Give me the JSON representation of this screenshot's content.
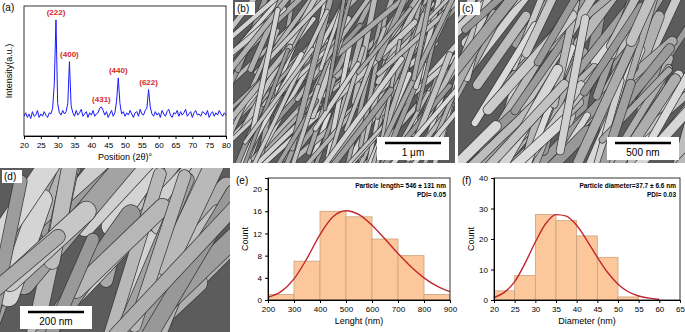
{
  "chart_data": [
    {
      "type": "line",
      "panel_label": "(a)",
      "x_label": "Position (2θ)°",
      "y_label": "Intensity(a.u.)",
      "x": [
        20,
        20.5,
        21,
        21.5,
        22,
        22.5,
        23,
        23.5,
        24,
        24.5,
        25,
        25.5,
        26,
        26.5,
        27,
        27.5,
        28,
        28.5,
        29,
        29.5,
        30,
        30.5,
        31,
        31.5,
        32,
        32.5,
        33,
        33.5,
        34,
        34.5,
        35,
        35.5,
        36,
        36.5,
        37,
        37.5,
        38,
        38.5,
        39,
        39.5,
        40,
        40.5,
        41,
        41.5,
        42,
        42.5,
        43,
        43.5,
        44,
        44.5,
        45,
        45.5,
        46,
        46.5,
        47,
        47.5,
        48,
        48.5,
        49,
        49.5,
        50,
        50.5,
        51,
        51.5,
        52,
        52.5,
        53,
        53.5,
        54,
        54.5,
        55,
        55.5,
        56,
        56.5,
        57,
        57.5,
        58,
        58.5,
        59,
        59.5,
        60,
        60.5,
        61,
        61.5,
        62,
        62.5,
        63,
        63.5,
        64,
        64.5,
        65,
        65.5,
        66,
        66.5,
        67,
        67.5,
        68,
        68.5,
        69,
        69.5,
        70,
        70.5,
        71,
        71.5,
        72,
        72.5,
        73,
        73.5,
        74,
        74.5,
        75,
        75.5,
        76,
        76.5,
        77,
        77.5,
        78,
        78.5,
        79,
        79.5,
        80
      ],
      "values": [
        17,
        20,
        16,
        19,
        15,
        21,
        17,
        18,
        22,
        16,
        19,
        17,
        21,
        18,
        16,
        20,
        19,
        24,
        45,
        100,
        28,
        20,
        18,
        22,
        19,
        21,
        28,
        64,
        26,
        20,
        17,
        22,
        18,
        20,
        23,
        17,
        19,
        21,
        16,
        20,
        18,
        22,
        17,
        19,
        20,
        24,
        25,
        22,
        18,
        21,
        16,
        19,
        22,
        17,
        20,
        30,
        50,
        28,
        19,
        21,
        17,
        20,
        18,
        22,
        19,
        16,
        20,
        21,
        17,
        23,
        19,
        18,
        22,
        24,
        40,
        25,
        19,
        17,
        21,
        18,
        20,
        16,
        22,
        19,
        17,
        21,
        23,
        18,
        16,
        20,
        19,
        22,
        17,
        21,
        18,
        20,
        23,
        17,
        19,
        21,
        16,
        20,
        22,
        18,
        19,
        17,
        21,
        20,
        18,
        22,
        16,
        19,
        21,
        17,
        20,
        18,
        22,
        19,
        17,
        20,
        18
      ],
      "color": "#1a1aff",
      "xlim": [
        20,
        80
      ],
      "xticks": [
        20,
        25,
        30,
        35,
        40,
        45,
        50,
        55,
        60,
        65,
        70,
        75,
        80
      ],
      "ylim": [
        0,
        112
      ],
      "tick_labels": "x",
      "annotations": [
        {
          "text": "(222)",
          "x": 29.5,
          "y": 104
        },
        {
          "text": "(400)",
          "x": 33.5,
          "y": 68
        },
        {
          "text": "(431)",
          "x": 43,
          "y": 29
        },
        {
          "text": "(440)",
          "x": 48,
          "y": 54
        },
        {
          "text": "(622)",
          "x": 57,
          "y": 44
        }
      ]
    },
    {
      "type": "histogram",
      "panel_label": "(e)",
      "x_label": "Lenght (nm)",
      "y_label": "Count",
      "bins": [
        200,
        300,
        400,
        500,
        600,
        700,
        800,
        900
      ],
      "counts": [
        1,
        7,
        16,
        15,
        11,
        8,
        1
      ],
      "color": "#fcc89b",
      "xlim": [
        200,
        900
      ],
      "xticks": [
        200,
        300,
        400,
        500,
        600,
        700,
        800,
        900
      ],
      "ylim": [
        0,
        22
      ],
      "yticks": [
        0,
        4,
        8,
        12,
        16,
        20
      ],
      "fit_curve": {
        "color": "#c1272d",
        "x": [
          200,
          250,
          300,
          350,
          400,
          450,
          500,
          550,
          600,
          650,
          700,
          750,
          800,
          850,
          900
        ],
        "values": [
          0.5,
          1.5,
          3.8,
          7.5,
          11.8,
          15.0,
          16.1,
          15.4,
          13.5,
          11.0,
          8.4,
          6.0,
          4.0,
          2.5,
          1.5
        ]
      },
      "annotations": [
        {
          "text": "Particle length= 546 ± 131 nm"
        },
        {
          "text": "PDI= 0.05"
        }
      ]
    },
    {
      "type": "histogram",
      "panel_label": "(f)",
      "x_label": "Diameter (nm)",
      "y_label": "Count",
      "bins": [
        20,
        25,
        30,
        35,
        40,
        45,
        50,
        55
      ],
      "counts": [
        3,
        8,
        28,
        26,
        21,
        14,
        1
      ],
      "color": "#fcc89b",
      "xlim": [
        20,
        65
      ],
      "xticks": [
        20,
        25,
        30,
        35,
        40,
        45,
        50,
        55,
        60,
        65
      ],
      "ylim": [
        0,
        40
      ],
      "yticks": [
        0,
        10,
        20,
        30,
        40
      ],
      "fit_curve": {
        "color": "#c1272d",
        "x": [
          20,
          22.5,
          25,
          27.5,
          30,
          32.5,
          35,
          37.5,
          40,
          42.5,
          45,
          47.5,
          50,
          52.5,
          55,
          57.5,
          60
        ],
        "values": [
          0.8,
          2.5,
          6,
          12,
          19,
          25,
          28,
          27.5,
          24.5,
          19.5,
          14,
          9,
          5.2,
          2.7,
          1.3,
          0.6,
          0.2
        ]
      },
      "annotations": [
        {
          "text": "Particle diameter=37.7 ± 6.6 nm"
        },
        {
          "text": "PDI= 0.03"
        }
      ]
    }
  ],
  "images": [
    {
      "panel_label": "(b)",
      "scale_bar": "1 μm"
    },
    {
      "panel_label": "(c)",
      "scale_bar": "500 nm"
    },
    {
      "panel_label": "(d)",
      "scale_bar": "200 nm"
    }
  ]
}
